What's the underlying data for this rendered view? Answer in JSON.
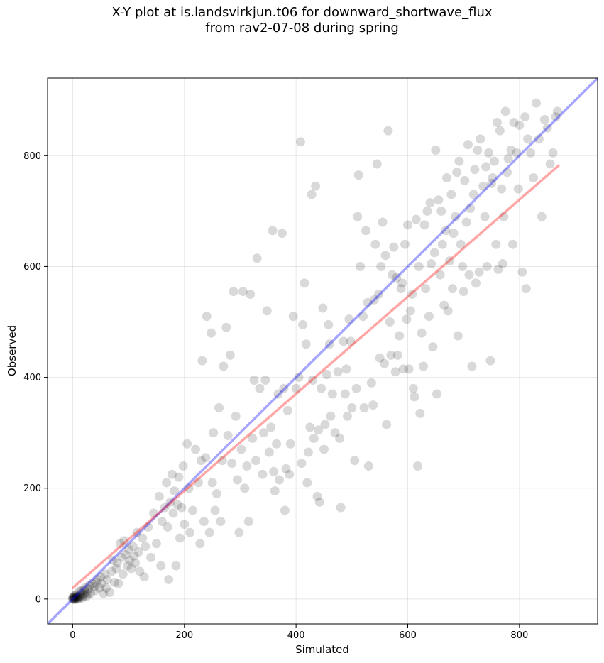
{
  "chart_data": {
    "type": "scatter",
    "title": "X-Y plot at is.landsvirkjun.t06 for downward_shortwave_flux",
    "subtitle": "from rav2-07-08 during spring",
    "xlabel": "Simulated",
    "ylabel": "Observed",
    "xlim": [
      -45,
      940
    ],
    "ylim": [
      -45,
      940
    ],
    "xticks": [
      0,
      200,
      400,
      600,
      800
    ],
    "yticks": [
      0,
      200,
      400,
      600,
      800
    ],
    "grid": true,
    "point_color": "#000000",
    "point_alpha": 0.15,
    "lines": [
      {
        "kind": "identity",
        "color": "#0000ff",
        "alpha": 0.35,
        "x": [
          -45,
          940
        ],
        "y": [
          -45,
          940
        ]
      },
      {
        "kind": "regression",
        "color": "#ff0000",
        "alpha": 0.35,
        "x": [
          0,
          870
        ],
        "y": [
          20,
          782
        ]
      }
    ],
    "points": [
      [
        0,
        0
      ],
      [
        1,
        1
      ],
      [
        2,
        0
      ],
      [
        3,
        2
      ],
      [
        1,
        3
      ],
      [
        4,
        1
      ],
      [
        5,
        0
      ],
      [
        2,
        5
      ],
      [
        6,
        3
      ],
      [
        3,
        -1
      ],
      [
        7,
        4
      ],
      [
        8,
        2
      ],
      [
        4,
        6
      ],
      [
        9,
        0
      ],
      [
        10,
        5
      ],
      [
        0,
        2
      ],
      [
        12,
        3
      ],
      [
        6,
        8
      ],
      [
        14,
        6
      ],
      [
        11,
        1
      ],
      [
        15,
        10
      ],
      [
        18,
        4
      ],
      [
        16,
        15
      ],
      [
        20,
        8
      ],
      [
        22,
        20
      ],
      [
        12,
        14
      ],
      [
        24,
        12
      ],
      [
        25,
        5
      ],
      [
        28,
        18
      ],
      [
        30,
        25
      ],
      [
        17,
        2
      ],
      [
        32,
        10
      ],
      [
        35,
        28
      ],
      [
        21,
        16
      ],
      [
        38,
        22
      ],
      [
        40,
        15
      ],
      [
        42,
        30
      ],
      [
        27,
        9
      ],
      [
        45,
        35
      ],
      [
        48,
        20
      ],
      [
        50,
        40
      ],
      [
        55,
        10
      ],
      [
        52,
        28
      ],
      [
        58,
        45
      ],
      [
        60,
        20
      ],
      [
        62,
        35
      ],
      [
        66,
        12
      ],
      [
        70,
        50
      ],
      [
        72,
        70
      ],
      [
        75,
        30
      ],
      [
        78,
        55
      ],
      [
        80,
        65
      ],
      [
        82,
        28
      ],
      [
        85,
        100
      ],
      [
        88,
        75
      ],
      [
        90,
        45
      ],
      [
        92,
        105
      ],
      [
        95,
        80
      ],
      [
        98,
        60
      ],
      [
        100,
        90
      ],
      [
        102,
        70
      ],
      [
        105,
        55
      ],
      [
        108,
        95
      ],
      [
        110,
        78
      ],
      [
        112,
        65
      ],
      [
        115,
        120
      ],
      [
        118,
        85
      ],
      [
        120,
        50
      ],
      [
        125,
        110
      ],
      [
        128,
        40
      ],
      [
        130,
        95
      ],
      [
        135,
        130
      ],
      [
        140,
        75
      ],
      [
        145,
        155
      ],
      [
        150,
        100
      ],
      [
        155,
        185
      ],
      [
        158,
        60
      ],
      [
        160,
        140
      ],
      [
        165,
        165
      ],
      [
        168,
        210
      ],
      [
        170,
        130
      ],
      [
        172,
        35
      ],
      [
        175,
        175
      ],
      [
        178,
        225
      ],
      [
        180,
        155
      ],
      [
        182,
        195
      ],
      [
        185,
        60
      ],
      [
        188,
        170
      ],
      [
        190,
        220
      ],
      [
        192,
        110
      ],
      [
        195,
        165
      ],
      [
        198,
        240
      ],
      [
        200,
        135
      ],
      [
        205,
        280
      ],
      [
        208,
        200
      ],
      [
        210,
        120
      ],
      [
        215,
        160
      ],
      [
        220,
        270
      ],
      [
        225,
        210
      ],
      [
        228,
        100
      ],
      [
        230,
        250
      ],
      [
        232,
        430
      ],
      [
        235,
        140
      ],
      [
        238,
        255
      ],
      [
        240,
        510
      ],
      [
        245,
        120
      ],
      [
        248,
        480
      ],
      [
        250,
        210
      ],
      [
        252,
        300
      ],
      [
        255,
        160
      ],
      [
        258,
        190
      ],
      [
        262,
        345
      ],
      [
        265,
        140
      ],
      [
        268,
        250
      ],
      [
        270,
        420
      ],
      [
        275,
        490
      ],
      [
        278,
        295
      ],
      [
        282,
        440
      ],
      [
        285,
        245
      ],
      [
        288,
        555
      ],
      [
        292,
        330
      ],
      [
        295,
        215
      ],
      [
        298,
        120
      ],
      [
        302,
        270
      ],
      [
        305,
        555
      ],
      [
        308,
        200
      ],
      [
        312,
        240
      ],
      [
        315,
        140
      ],
      [
        318,
        550
      ],
      [
        322,
        290
      ],
      [
        325,
        395
      ],
      [
        328,
        250
      ],
      [
        330,
        615
      ],
      [
        335,
        380
      ],
      [
        340,
        225
      ],
      [
        342,
        300
      ],
      [
        345,
        395
      ],
      [
        348,
        520
      ],
      [
        352,
        265
      ],
      [
        355,
        310
      ],
      [
        358,
        665
      ],
      [
        360,
        230
      ],
      [
        362,
        195
      ],
      [
        365,
        280
      ],
      [
        368,
        370
      ],
      [
        370,
        215
      ],
      [
        375,
        660
      ],
      [
        378,
        380
      ],
      [
        380,
        160
      ],
      [
        382,
        235
      ],
      [
        385,
        340
      ],
      [
        388,
        225
      ],
      [
        390,
        280
      ],
      [
        395,
        510
      ],
      [
        400,
        380
      ],
      [
        405,
        400
      ],
      [
        408,
        825
      ],
      [
        410,
        245
      ],
      [
        412,
        495
      ],
      [
        415,
        570
      ],
      [
        418,
        460
      ],
      [
        420,
        210
      ],
      [
        422,
        265
      ],
      [
        425,
        310
      ],
      [
        428,
        730
      ],
      [
        430,
        395
      ],
      [
        432,
        290
      ],
      [
        435,
        745
      ],
      [
        438,
        185
      ],
      [
        440,
        305
      ],
      [
        442,
        175
      ],
      [
        445,
        380
      ],
      [
        448,
        525
      ],
      [
        450,
        270
      ],
      [
        452,
        315
      ],
      [
        455,
        405
      ],
      [
        458,
        495
      ],
      [
        460,
        460
      ],
      [
        462,
        330
      ],
      [
        465,
        370
      ],
      [
        470,
        300
      ],
      [
        475,
        410
      ],
      [
        478,
        290
      ],
      [
        480,
        165
      ],
      [
        485,
        465
      ],
      [
        488,
        370
      ],
      [
        490,
        415
      ],
      [
        492,
        330
      ],
      [
        495,
        505
      ],
      [
        498,
        465
      ],
      [
        500,
        345
      ],
      [
        505,
        250
      ],
      [
        508,
        380
      ],
      [
        510,
        690
      ],
      [
        512,
        765
      ],
      [
        515,
        600
      ],
      [
        520,
        510
      ],
      [
        522,
        345
      ],
      [
        525,
        665
      ],
      [
        528,
        535
      ],
      [
        530,
        240
      ],
      [
        535,
        390
      ],
      [
        538,
        350
      ],
      [
        540,
        540
      ],
      [
        542,
        640
      ],
      [
        545,
        785
      ],
      [
        548,
        550
      ],
      [
        550,
        435
      ],
      [
        552,
        600
      ],
      [
        555,
        680
      ],
      [
        558,
        425
      ],
      [
        560,
        620
      ],
      [
        562,
        315
      ],
      [
        565,
        845
      ],
      [
        568,
        500
      ],
      [
        570,
        440
      ],
      [
        572,
        585
      ],
      [
        575,
        635
      ],
      [
        578,
        410
      ],
      [
        580,
        580
      ],
      [
        582,
        440
      ],
      [
        585,
        475
      ],
      [
        588,
        560
      ],
      [
        590,
        570
      ],
      [
        592,
        415
      ],
      [
        595,
        640
      ],
      [
        598,
        505
      ],
      [
        600,
        675
      ],
      [
        602,
        415
      ],
      [
        605,
        520
      ],
      [
        608,
        550
      ],
      [
        610,
        380
      ],
      [
        612,
        365
      ],
      [
        615,
        685
      ],
      [
        618,
        240
      ],
      [
        620,
        600
      ],
      [
        622,
        335
      ],
      [
        625,
        480
      ],
      [
        628,
        420
      ],
      [
        630,
        675
      ],
      [
        632,
        560
      ],
      [
        635,
        700
      ],
      [
        638,
        510
      ],
      [
        640,
        715
      ],
      [
        642,
        605
      ],
      [
        645,
        455
      ],
      [
        648,
        625
      ],
      [
        650,
        810
      ],
      [
        652,
        370
      ],
      [
        655,
        720
      ],
      [
        658,
        585
      ],
      [
        660,
        700
      ],
      [
        662,
        640
      ],
      [
        665,
        530
      ],
      [
        668,
        665
      ],
      [
        670,
        760
      ],
      [
        672,
        520
      ],
      [
        675,
        610
      ],
      [
        678,
        730
      ],
      [
        680,
        560
      ],
      [
        682,
        660
      ],
      [
        685,
        690
      ],
      [
        688,
        770
      ],
      [
        690,
        475
      ],
      [
        692,
        790
      ],
      [
        695,
        640
      ],
      [
        698,
        600
      ],
      [
        700,
        555
      ],
      [
        702,
        755
      ],
      [
        705,
        680
      ],
      [
        708,
        820
      ],
      [
        710,
        585
      ],
      [
        712,
        705
      ],
      [
        715,
        420
      ],
      [
        718,
        730
      ],
      [
        720,
        775
      ],
      [
        722,
        570
      ],
      [
        725,
        810
      ],
      [
        728,
        590
      ],
      [
        730,
        830
      ],
      [
        735,
        745
      ],
      [
        738,
        690
      ],
      [
        740,
        780
      ],
      [
        742,
        600
      ],
      [
        745,
        805
      ],
      [
        748,
        430
      ],
      [
        750,
        750
      ],
      [
        752,
        760
      ],
      [
        755,
        790
      ],
      [
        758,
        640
      ],
      [
        760,
        860
      ],
      [
        762,
        595
      ],
      [
        765,
        845
      ],
      [
        768,
        740
      ],
      [
        770,
        605
      ],
      [
        772,
        690
      ],
      [
        775,
        880
      ],
      [
        778,
        770
      ],
      [
        780,
        795
      ],
      [
        785,
        810
      ],
      [
        788,
        640
      ],
      [
        790,
        860
      ],
      [
        795,
        805
      ],
      [
        800,
        855
      ],
      [
        805,
        590
      ],
      [
        810,
        870
      ],
      [
        815,
        830
      ],
      [
        820,
        805
      ],
      [
        825,
        760
      ],
      [
        830,
        895
      ],
      [
        835,
        830
      ],
      [
        840,
        690
      ],
      [
        845,
        865
      ],
      [
        850,
        850
      ],
      [
        855,
        785
      ],
      [
        860,
        805
      ],
      [
        865,
        870
      ],
      [
        868,
        880
      ],
      [
        812,
        560
      ],
      [
        798,
        740
      ]
    ]
  }
}
